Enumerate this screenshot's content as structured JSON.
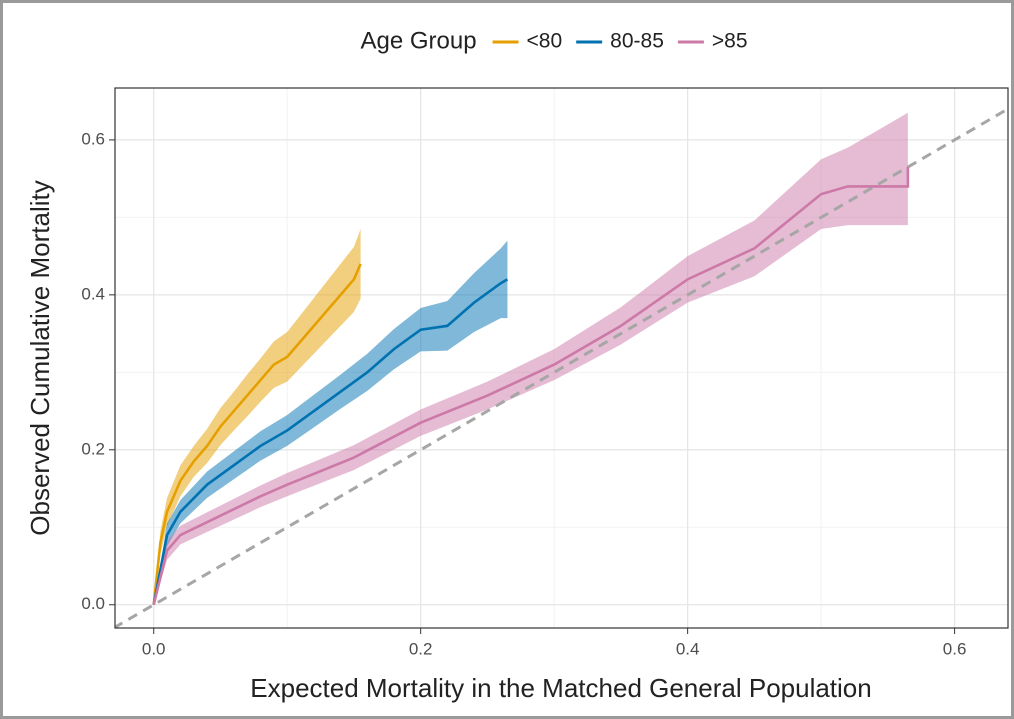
{
  "chart_data": {
    "type": "line",
    "legend_title": "Age Group",
    "x_label": "Expected Mortality in the Matched General Population",
    "y_label": "Observed Cumulative Mortality",
    "xlim": [
      -0.029,
      0.64
    ],
    "ylim": [
      -0.03,
      0.667
    ],
    "xticks": [
      {
        "value": 0,
        "label": "0.0"
      },
      0.2,
      0.4,
      0.6
    ],
    "yticks": [
      {
        "value": 0,
        "label": "0.0"
      },
      0.2,
      0.4,
      0.6
    ],
    "grid": true,
    "legend": "top",
    "series": [
      {
        "name": "<80",
        "color": "#E69F00",
        "x": [
          0,
          0.005,
          0.01,
          0.02,
          0.03,
          0.04,
          0.05,
          0.06,
          0.07,
          0.08,
          0.09,
          0.1,
          0.11,
          0.12,
          0.13,
          0.14,
          0.15,
          0.155
        ],
        "values": [
          0,
          0.08,
          0.12,
          0.16,
          0.185,
          0.205,
          0.23,
          0.25,
          0.27,
          0.29,
          0.31,
          0.32,
          0.34,
          0.36,
          0.38,
          0.4,
          0.42,
          0.44
        ],
        "lower": [
          0,
          0.065,
          0.102,
          0.14,
          0.165,
          0.183,
          0.206,
          0.225,
          0.243,
          0.262,
          0.28,
          0.288,
          0.306,
          0.324,
          0.342,
          0.36,
          0.378,
          0.395
        ],
        "upper": [
          0,
          0.095,
          0.138,
          0.18,
          0.205,
          0.227,
          0.254,
          0.275,
          0.297,
          0.318,
          0.34,
          0.352,
          0.374,
          0.396,
          0.418,
          0.44,
          0.462,
          0.485
        ]
      },
      {
        "name": "80-85",
        "color": "#0072B2",
        "x": [
          0,
          0.01,
          0.02,
          0.04,
          0.06,
          0.08,
          0.1,
          0.12,
          0.14,
          0.16,
          0.18,
          0.2,
          0.22,
          0.24,
          0.26,
          0.265
        ],
        "values": [
          0,
          0.09,
          0.12,
          0.155,
          0.18,
          0.205,
          0.225,
          0.25,
          0.275,
          0.3,
          0.33,
          0.355,
          0.36,
          0.39,
          0.415,
          0.42
        ],
        "lower": [
          0,
          0.075,
          0.105,
          0.138,
          0.162,
          0.186,
          0.205,
          0.229,
          0.253,
          0.276,
          0.304,
          0.327,
          0.328,
          0.352,
          0.37,
          0.37
        ],
        "upper": [
          0,
          0.105,
          0.135,
          0.172,
          0.198,
          0.224,
          0.245,
          0.271,
          0.297,
          0.324,
          0.356,
          0.383,
          0.392,
          0.428,
          0.46,
          0.47
        ]
      },
      {
        "name": ">85",
        "color": "#CC79A7",
        "x": [
          0,
          0.01,
          0.02,
          0.05,
          0.08,
          0.1,
          0.15,
          0.2,
          0.25,
          0.3,
          0.35,
          0.4,
          0.45,
          0.5,
          0.52,
          0.565,
          0.565
        ],
        "values": [
          0,
          0.07,
          0.09,
          0.115,
          0.14,
          0.155,
          0.19,
          0.235,
          0.27,
          0.31,
          0.36,
          0.42,
          0.46,
          0.53,
          0.54,
          0.54,
          0.565
        ],
        "lower": [
          0,
          0.058,
          0.078,
          0.102,
          0.126,
          0.14,
          0.174,
          0.218,
          0.252,
          0.29,
          0.336,
          0.39,
          0.424,
          0.485,
          0.49,
          0.49,
          0.49
        ],
        "upper": [
          0,
          0.082,
          0.102,
          0.128,
          0.154,
          0.17,
          0.206,
          0.252,
          0.288,
          0.33,
          0.384,
          0.45,
          0.496,
          0.575,
          0.59,
          0.635,
          0.635
        ]
      }
    ]
  }
}
